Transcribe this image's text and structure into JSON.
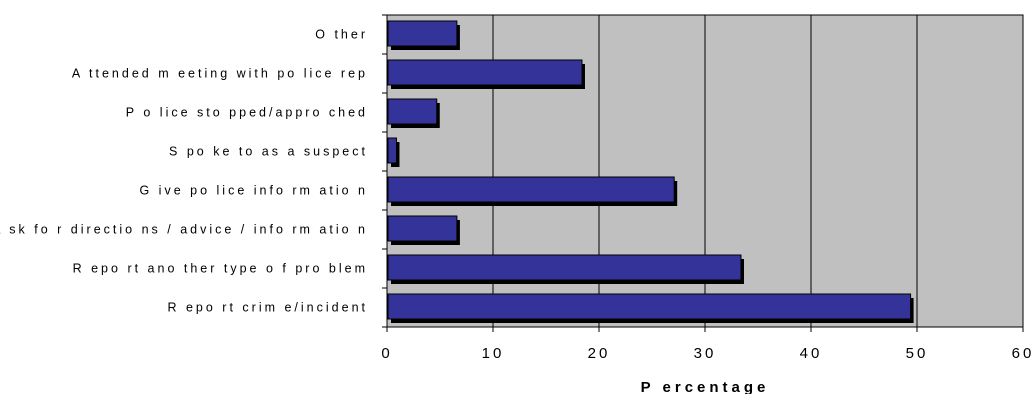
{
  "chart_data": {
    "type": "bar",
    "orientation": "horizontal",
    "categories": [
      "O ther",
      "A ttended m eeting with po lice rep",
      "P o lice sto pped/appro ched",
      "S po ke to as a suspect",
      "G ive po lice info rm atio n",
      "A sk fo r directio ns / advice / info rm atio n",
      "R epo rt ano ther type o f pro blem",
      "R epo rt crim e/incident"
    ],
    "values": [
      6.5,
      18.3,
      4.6,
      0.8,
      27.0,
      6.5,
      33.3,
      49.3
    ],
    "xlabel": "P ercentage",
    "ylabel": "",
    "title": "",
    "xlim": [
      0,
      60
    ],
    "x_ticks": [
      "0",
      "10",
      "20",
      "30",
      "40",
      "50",
      "60"
    ],
    "grid": "vertical",
    "colors": {
      "bar": "#333399",
      "shadow": "#000000",
      "plot_background": "#c0c0c0",
      "gridline": "#000000"
    }
  }
}
